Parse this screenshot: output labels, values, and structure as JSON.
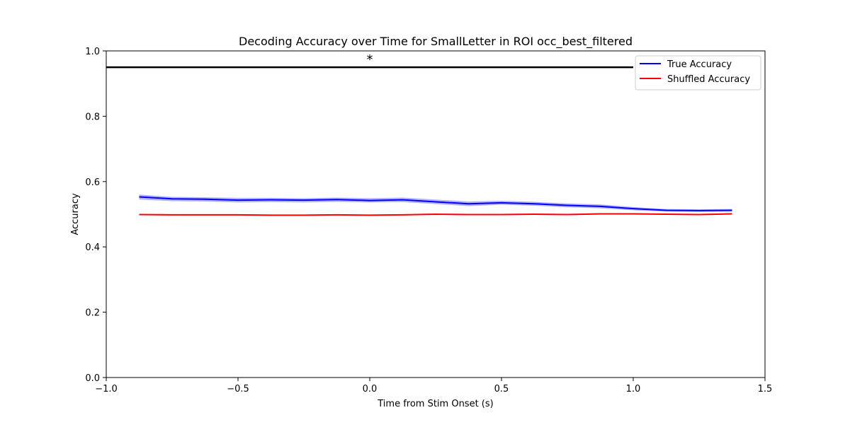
{
  "chart_data": {
    "type": "line",
    "title": "Decoding Accuracy over Time for SmallLetter in ROI occ_best_filtered",
    "xlabel": "Time from Stim Onset (s)",
    "ylabel": "Accuracy",
    "xlim": [
      -1.0,
      1.5
    ],
    "ylim": [
      0.0,
      1.0
    ],
    "x_ticks": [
      -1.0,
      -0.5,
      0.0,
      0.5,
      1.0,
      1.5
    ],
    "x_tick_labels": [
      "−1.0",
      "−0.5",
      "0.0",
      "0.5",
      "1.0",
      "1.5"
    ],
    "y_ticks": [
      0.0,
      0.2,
      0.4,
      0.6,
      0.8,
      1.0
    ],
    "y_tick_labels": [
      "0.0",
      "0.2",
      "0.4",
      "0.6",
      "0.8",
      "1.0"
    ],
    "grid": false,
    "legend_position": "top-right",
    "x": [
      -0.875,
      -0.75,
      -0.625,
      -0.5,
      -0.375,
      -0.25,
      -0.125,
      0.0,
      0.125,
      0.25,
      0.375,
      0.5,
      0.625,
      0.75,
      0.875,
      1.0,
      1.125,
      1.25,
      1.375
    ],
    "series": [
      {
        "name": "True Accuracy",
        "color": "#0000ff",
        "values": [
          0.553,
          0.547,
          0.546,
          0.543,
          0.544,
          0.543,
          0.545,
          0.542,
          0.544,
          0.538,
          0.532,
          0.535,
          0.532,
          0.527,
          0.524,
          0.517,
          0.512,
          0.511,
          0.512
        ],
        "ci_low": [
          0.545,
          0.54,
          0.539,
          0.536,
          0.537,
          0.536,
          0.538,
          0.536,
          0.537,
          0.531,
          0.525,
          0.529,
          0.526,
          0.521,
          0.518,
          0.512,
          0.508,
          0.507,
          0.508
        ],
        "ci_high": [
          0.56,
          0.553,
          0.552,
          0.55,
          0.55,
          0.549,
          0.551,
          0.549,
          0.551,
          0.545,
          0.539,
          0.541,
          0.538,
          0.533,
          0.53,
          0.522,
          0.516,
          0.515,
          0.516
        ]
      },
      {
        "name": "Shuffled Accuracy",
        "color": "#ff0000",
        "values": [
          0.499,
          0.498,
          0.498,
          0.498,
          0.497,
          0.497,
          0.498,
          0.497,
          0.498,
          0.5,
          0.499,
          0.499,
          0.5,
          0.499,
          0.501,
          0.501,
          0.5,
          0.499,
          0.501
        ],
        "ci_low": [
          0.497,
          0.496,
          0.496,
          0.496,
          0.495,
          0.495,
          0.496,
          0.495,
          0.496,
          0.498,
          0.497,
          0.497,
          0.498,
          0.497,
          0.499,
          0.499,
          0.498,
          0.497,
          0.499
        ],
        "ci_high": [
          0.501,
          0.5,
          0.5,
          0.5,
          0.499,
          0.499,
          0.5,
          0.499,
          0.5,
          0.502,
          0.501,
          0.501,
          0.502,
          0.501,
          0.503,
          0.503,
          0.502,
          0.501,
          0.503
        ]
      }
    ],
    "significance_bar": {
      "x_start": -1.0,
      "x_end": 1.0,
      "y": 0.95,
      "color": "#000000",
      "marker": "*",
      "marker_x": 0.0,
      "marker_y": 0.98
    }
  }
}
